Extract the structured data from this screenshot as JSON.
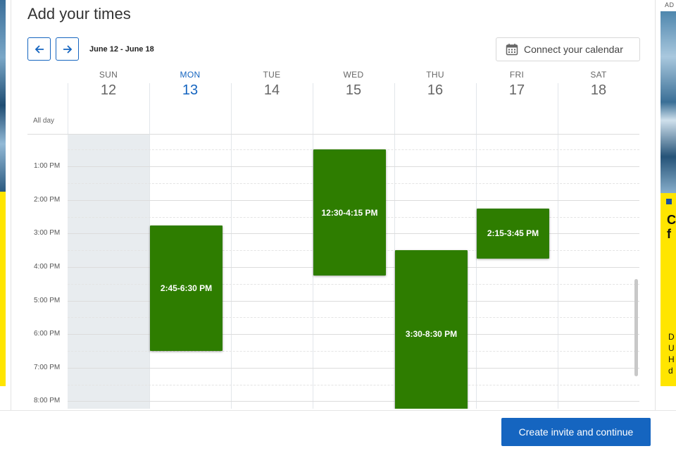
{
  "ad": {
    "label": "AD",
    "headline": "C f",
    "body": "D U H d"
  },
  "page": {
    "title": "Add your times",
    "date_range": "June 12 - June 18",
    "connect_calendar_label": "Connect your calendar",
    "prev_icon": "arrow-left-icon",
    "next_icon": "arrow-right-icon",
    "calendar_icon": "calendar-icon"
  },
  "calendar": {
    "all_day_label": "All day",
    "today_index": 1,
    "days": [
      {
        "name": "SUN",
        "num": "12"
      },
      {
        "name": "MON",
        "num": "13"
      },
      {
        "name": "TUE",
        "num": "14"
      },
      {
        "name": "WED",
        "num": "15"
      },
      {
        "name": "THU",
        "num": "16"
      },
      {
        "name": "FRI",
        "num": "17"
      },
      {
        "name": "SAT",
        "num": "18"
      }
    ],
    "time_labels": [
      "1:00 PM",
      "2:00 PM",
      "3:00 PM",
      "4:00 PM",
      "5:00 PM",
      "6:00 PM",
      "7:00 PM",
      "8:00 PM"
    ],
    "events": [
      {
        "day": 1,
        "start": 14.75,
        "end": 18.5,
        "label": "2:45-6:30 PM"
      },
      {
        "day": 3,
        "start": 12.5,
        "end": 16.25,
        "label": "12:30-4:15 PM"
      },
      {
        "day": 4,
        "start": 15.5,
        "end": 20.5,
        "label": "3:30-8:30 PM"
      },
      {
        "day": 5,
        "start": 14.25,
        "end": 15.75,
        "label": "2:15-3:45 PM"
      }
    ],
    "event_color": "#2e7d00"
  },
  "footer": {
    "create_label": "Create invite and continue",
    "accent": "#1565c0"
  }
}
